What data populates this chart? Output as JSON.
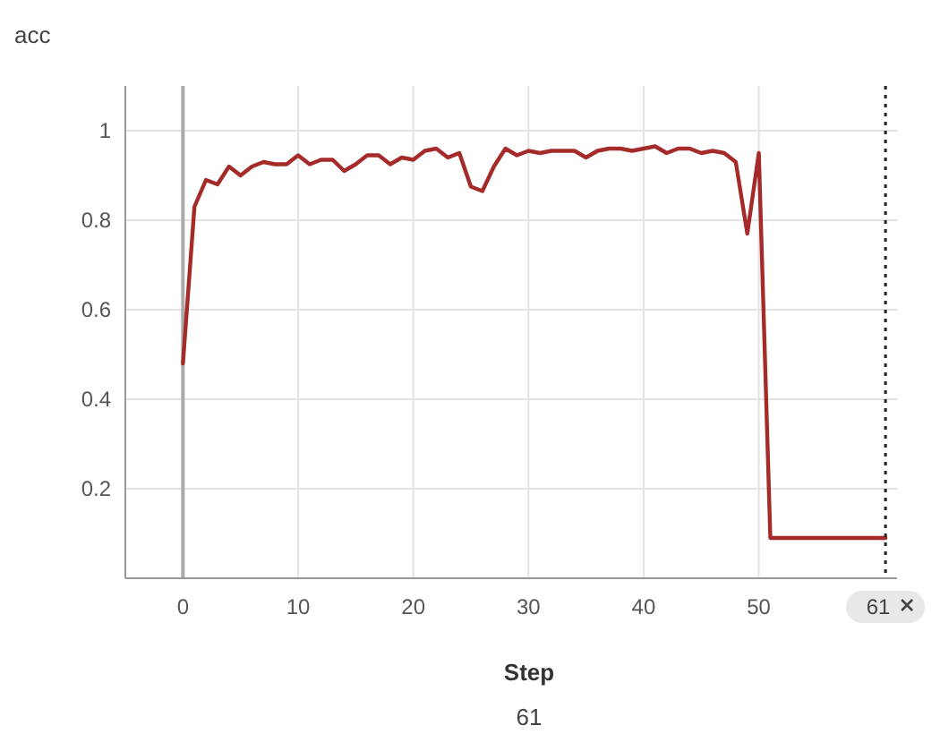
{
  "chart_data": {
    "type": "line",
    "title": "acc",
    "xlabel": "Step",
    "x": [
      0,
      1,
      2,
      3,
      4,
      5,
      6,
      7,
      8,
      9,
      10,
      11,
      12,
      13,
      14,
      15,
      16,
      17,
      18,
      19,
      20,
      21,
      22,
      23,
      24,
      25,
      26,
      27,
      28,
      29,
      30,
      31,
      32,
      33,
      34,
      35,
      36,
      37,
      38,
      39,
      40,
      41,
      42,
      43,
      44,
      45,
      46,
      47,
      48,
      49,
      50,
      51,
      61
    ],
    "series": [
      {
        "color": "#a52a2a",
        "values": [
          0.48,
          0.83,
          0.89,
          0.88,
          0.92,
          0.9,
          0.92,
          0.93,
          0.925,
          0.925,
          0.945,
          0.925,
          0.935,
          0.935,
          0.91,
          0.925,
          0.945,
          0.945,
          0.925,
          0.94,
          0.935,
          0.955,
          0.96,
          0.94,
          0.95,
          0.875,
          0.865,
          0.92,
          0.96,
          0.945,
          0.955,
          0.95,
          0.955,
          0.955,
          0.955,
          0.94,
          0.955,
          0.96,
          0.96,
          0.955,
          0.96,
          0.965,
          0.95,
          0.96,
          0.96,
          0.95,
          0.955,
          0.95,
          0.93,
          0.77,
          0.95,
          0.09,
          0.09
        ]
      }
    ],
    "xlim": [
      -5,
      62
    ],
    "xticks": [
      0,
      10,
      20,
      30,
      40,
      50
    ],
    "ylim": [
      0,
      1.1
    ],
    "yticks": [
      {
        "value": 0,
        "label": null
      },
      0.2,
      0.4,
      0.6,
      0.8,
      1
    ],
    "grid": true,
    "marker": "none",
    "line_style": "solid",
    "ref_lines": [
      {
        "axis": "x",
        "value": 61,
        "label": "61",
        "line_style": "dotted",
        "color": "#222222"
      }
    ],
    "annotations": [
      "61"
    ]
  }
}
